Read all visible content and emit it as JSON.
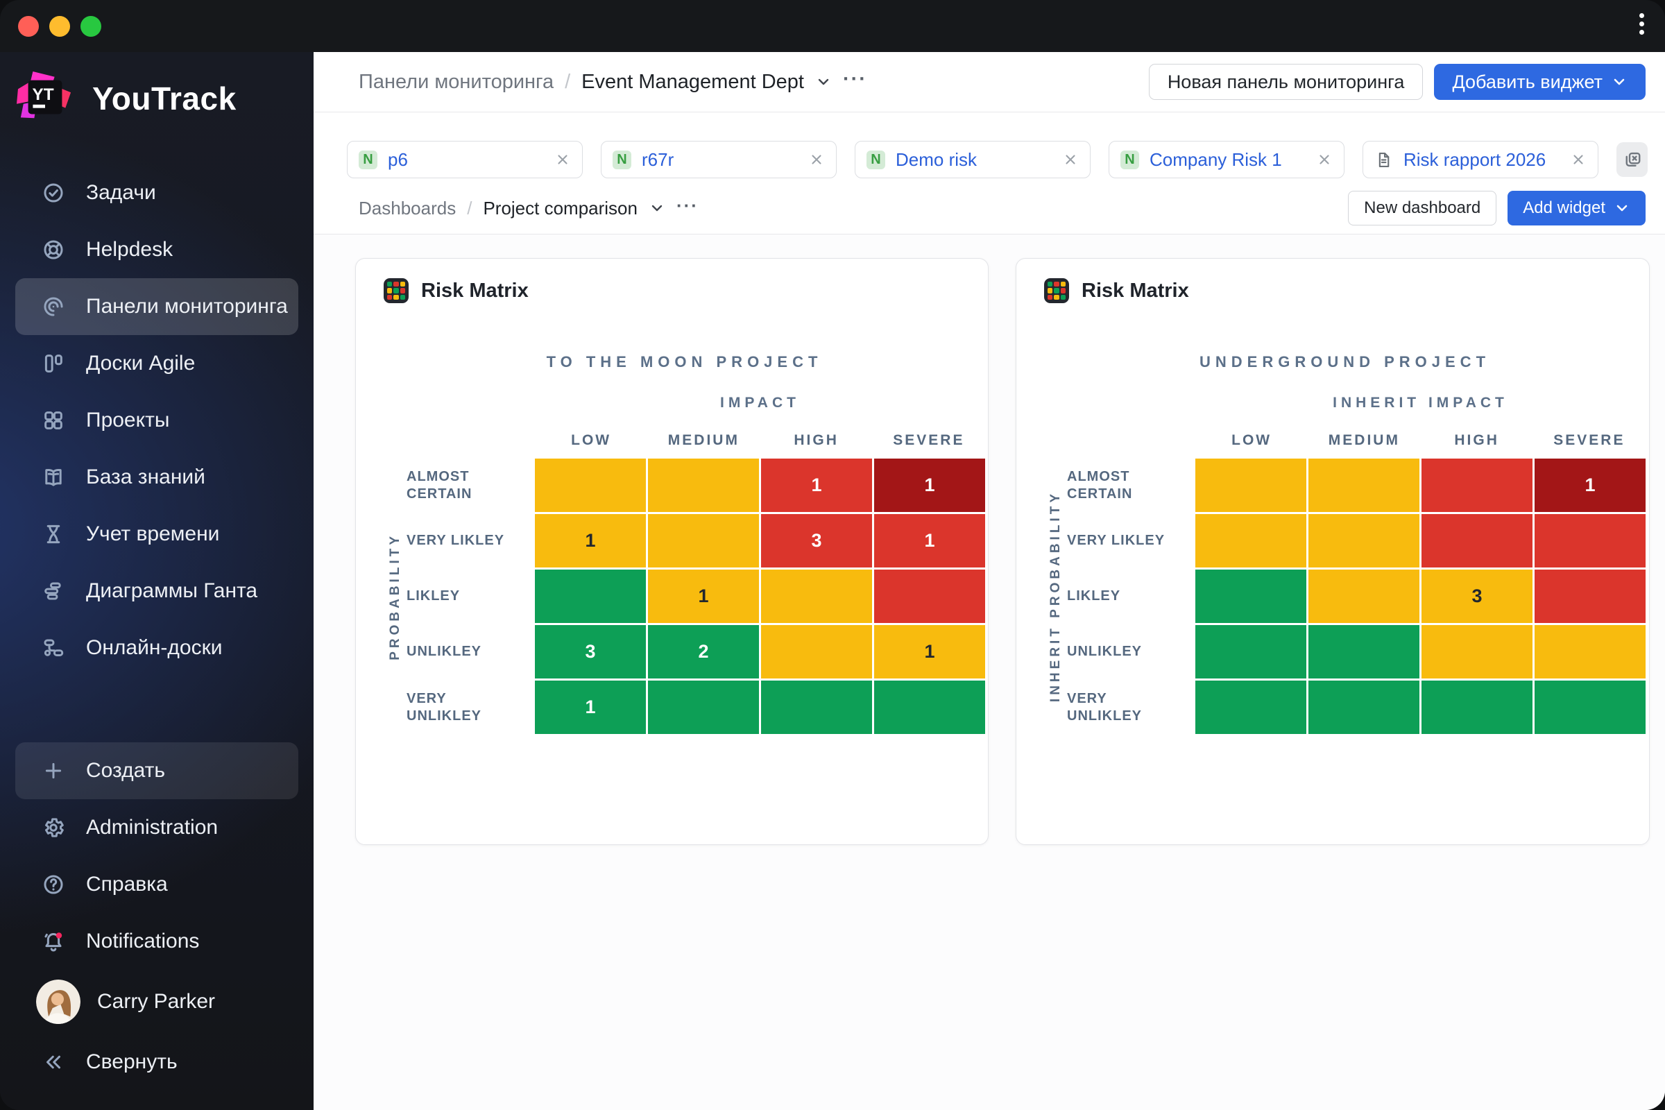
{
  "window": {
    "traffic_lights": [
      "#FF5F57",
      "#FEBC2E",
      "#28C840"
    ]
  },
  "colors": {
    "yellow": "#F8BB0E",
    "red": "#DB352C",
    "darkred": "#A31617",
    "green": "#0D9F56",
    "accent_blue": "#2E69E1",
    "link_blue": "#2B5FD9",
    "badge_green_bg": "#D4EBD6",
    "badge_green_text": "#379E41"
  },
  "sidebar": {
    "logo": "YouTrack",
    "logo_badge": "YT",
    "items": [
      {
        "id": "tasks",
        "icon": "check-circle",
        "label": "Задачи"
      },
      {
        "id": "helpdesk",
        "icon": "lifebuoy",
        "label": "Helpdesk"
      },
      {
        "id": "dashboards",
        "icon": "dashboard",
        "label": "Панели мониторинга",
        "selected": true
      },
      {
        "id": "agile-boards",
        "icon": "agile-board",
        "label": "Доски Agile"
      },
      {
        "id": "projects",
        "icon": "projects-grid",
        "label": "Проекты"
      },
      {
        "id": "knowledge-base",
        "icon": "book",
        "label": "База знаний"
      },
      {
        "id": "time-tracking",
        "icon": "hourglass",
        "label": "Учет времени"
      },
      {
        "id": "gantt-charts",
        "icon": "gantt",
        "label": "Диаграммы Ганта"
      },
      {
        "id": "whiteboards",
        "icon": "whiteboard",
        "label": "Онлайн-доски"
      }
    ],
    "footer_items": [
      {
        "id": "create",
        "icon": "plus",
        "label": "Создать",
        "pill": true
      },
      {
        "id": "administration",
        "icon": "gear",
        "label": "Administration"
      },
      {
        "id": "help",
        "icon": "question",
        "label": "Справка"
      },
      {
        "id": "notifications",
        "icon": "bell",
        "label": "Notifications"
      },
      {
        "id": "user",
        "icon": "avatar",
        "label": "Carry Parker",
        "user": true
      },
      {
        "id": "collapse",
        "icon": "collapse",
        "label": "Свернуть"
      }
    ]
  },
  "topbar": {
    "root": "Панели мониторинга",
    "separator": "/",
    "current": "Event Management Dept",
    "ellipsis": "···",
    "new_dashboard": "Новая панель мониторинга",
    "add_widget": "Добавить виджет"
  },
  "filters": [
    {
      "badge": "N",
      "label": "p6"
    },
    {
      "badge": "N",
      "label": "r67r"
    },
    {
      "badge": "N",
      "label": "Demo risk"
    },
    {
      "badge": "N",
      "label": "Company Risk 1"
    },
    {
      "badge": "doc",
      "label": "Risk rapport 2026"
    }
  ],
  "subbar": {
    "root": "Dashboards",
    "separator": "/",
    "current": "Project comparison",
    "ellipsis": "···",
    "new_dashboard": "New dashboard",
    "add_widget": "Add widget"
  },
  "widgets": [
    {
      "title": "Risk Matrix",
      "project": "TO THE MOON PROJECT",
      "impact_label": "IMPACT",
      "probability_label": "PROBABILITY",
      "columns": [
        "LOW",
        "MEDIUM",
        "HIGH",
        "SEVERE"
      ],
      "rows": [
        "ALMOST CERTAIN",
        "VERY LIKLEY",
        "LIKLEY",
        "UNLIKLEY",
        "VERY UNLIKLEY"
      ],
      "cells": [
        [
          {
            "c": "yellow"
          },
          {
            "c": "yellow"
          },
          {
            "c": "red",
            "v": 1
          },
          {
            "c": "darkred",
            "v": 1
          }
        ],
        [
          {
            "c": "yellow",
            "v": 1
          },
          {
            "c": "yellow"
          },
          {
            "c": "red",
            "v": 3
          },
          {
            "c": "red",
            "v": 1
          }
        ],
        [
          {
            "c": "green"
          },
          {
            "c": "yellow",
            "v": 1
          },
          {
            "c": "yellow"
          },
          {
            "c": "red"
          }
        ],
        [
          {
            "c": "green",
            "v": 3
          },
          {
            "c": "green",
            "v": 2
          },
          {
            "c": "yellow"
          },
          {
            "c": "yellow",
            "v": 1
          }
        ],
        [
          {
            "c": "green",
            "v": 1
          },
          {
            "c": "green"
          },
          {
            "c": "green"
          },
          {
            "c": "green"
          }
        ]
      ]
    },
    {
      "title": "Risk Matrix",
      "project": "UNDERGROUND PROJECT",
      "impact_label": "INHERIT IMPACT",
      "probability_label": "INHERIT PROBABILITY",
      "columns": [
        "LOW",
        "MEDIUM",
        "HIGH",
        "SEVERE"
      ],
      "rows": [
        "ALMOST CERTAIN",
        "VERY LIKLEY",
        "LIKLEY",
        "UNLIKLEY",
        "VERY UNLIKLEY"
      ],
      "cells": [
        [
          {
            "c": "yellow"
          },
          {
            "c": "yellow"
          },
          {
            "c": "red"
          },
          {
            "c": "darkred",
            "v": 1
          }
        ],
        [
          {
            "c": "yellow"
          },
          {
            "c": "yellow"
          },
          {
            "c": "red"
          },
          {
            "c": "red"
          }
        ],
        [
          {
            "c": "green"
          },
          {
            "c": "yellow"
          },
          {
            "c": "yellow",
            "v": 3
          },
          {
            "c": "red"
          }
        ],
        [
          {
            "c": "green"
          },
          {
            "c": "green"
          },
          {
            "c": "yellow"
          },
          {
            "c": "yellow"
          }
        ],
        [
          {
            "c": "green"
          },
          {
            "c": "green"
          },
          {
            "c": "green"
          },
          {
            "c": "green"
          }
        ]
      ]
    }
  ]
}
